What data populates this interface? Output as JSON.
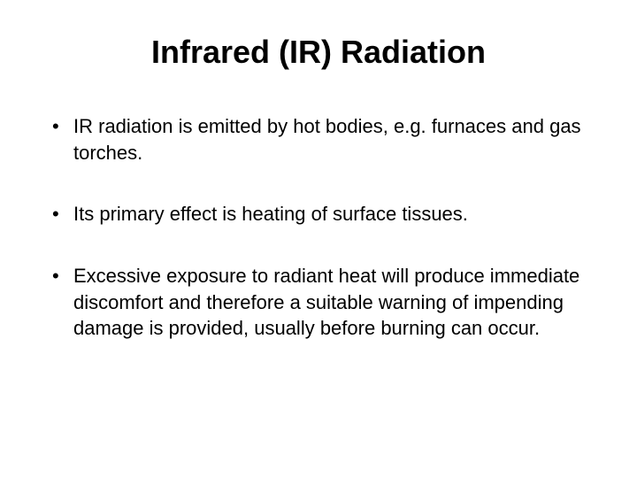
{
  "slide": {
    "title": "Infrared (IR) Radiation",
    "bullets": [
      "IR radiation is emitted by hot bodies, e.g. furnaces and gas torches.",
      "Its primary effect is heating of surface tissues.",
      "Excessive exposure to radiant heat will produce immediate discomfort and therefore a suitable warning of impending damage is provided, usually before burning can occur."
    ],
    "styling": {
      "background_color": "#ffffff",
      "text_color": "#000000",
      "title_fontsize": 36,
      "title_weight": "bold",
      "body_fontsize": 22,
      "font_family": "Arial",
      "bullet_char": "•",
      "slide_width": 720,
      "slide_height": 540
    }
  }
}
